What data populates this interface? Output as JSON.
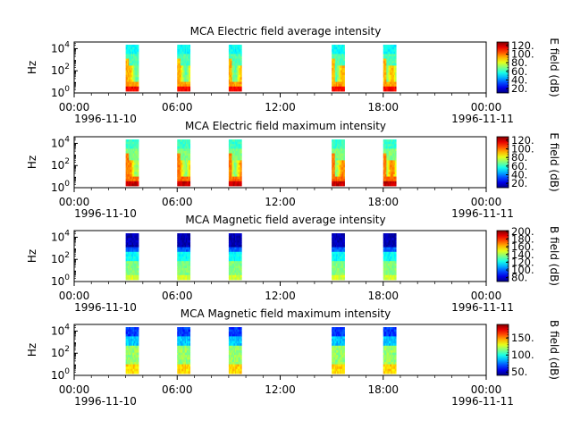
{
  "chart_data": [
    {
      "type": "heatmap",
      "title": "MCA  Electric field average intensity",
      "ylabel": "Hz",
      "colorbar_label": "E field (dB)",
      "colorbar_ticks": [
        "20.",
        "40.",
        "60.",
        "80.",
        "100.",
        "120."
      ],
      "colorbar_range": [
        10,
        128
      ],
      "y_ticks": [
        "10^0",
        "10^2",
        "10^4"
      ],
      "x_ticks": [
        "00:00",
        "06:00",
        "12:00",
        "18:00",
        "00:00"
      ],
      "x_dates": [
        "1996-11-10",
        "1996-11-11"
      ],
      "x_range_hours": [
        0,
        24
      ],
      "data_blocks_hours": [
        [
          3.0,
          3.75
        ],
        [
          6.0,
          6.75
        ],
        [
          9.0,
          9.75
        ],
        [
          15.0,
          15.75
        ],
        [
          18.0,
          18.75
        ]
      ],
      "palette": "rainbow",
      "profile": "efield-avg"
    },
    {
      "type": "heatmap",
      "title": "MCA  Electric field maximum intensity",
      "ylabel": "Hz",
      "colorbar_label": "E field (dB)",
      "colorbar_ticks": [
        "20.",
        "40.",
        "60.",
        "80.",
        "100.",
        "120."
      ],
      "colorbar_range": [
        10,
        128
      ],
      "y_ticks": [
        "10^0",
        "10^2",
        "10^4"
      ],
      "x_ticks": [
        "00:00",
        "06:00",
        "12:00",
        "18:00",
        "00:00"
      ],
      "x_dates": [
        "1996-11-10",
        "1996-11-11"
      ],
      "x_range_hours": [
        0,
        24
      ],
      "data_blocks_hours": [
        [
          3.0,
          3.75
        ],
        [
          6.0,
          6.75
        ],
        [
          9.0,
          9.75
        ],
        [
          15.0,
          15.75
        ],
        [
          18.0,
          18.75
        ]
      ],
      "palette": "rainbow",
      "profile": "efield-max"
    },
    {
      "type": "heatmap",
      "title": "MCA  Magnetic field average intensity",
      "ylabel": "Hz",
      "colorbar_label": "B field (dB)",
      "colorbar_ticks": [
        "80.",
        "100.",
        "120.",
        "140.",
        "160.",
        "180.",
        "200."
      ],
      "colorbar_range": [
        70,
        202
      ],
      "y_ticks": [
        "10^0",
        "10^2",
        "10^4"
      ],
      "x_ticks": [
        "00:00",
        "06:00",
        "12:00",
        "18:00",
        "00:00"
      ],
      "x_dates": [
        "1996-11-10",
        "1996-11-11"
      ],
      "x_range_hours": [
        0,
        24
      ],
      "data_blocks_hours": [
        [
          3.0,
          3.75
        ],
        [
          6.0,
          6.75
        ],
        [
          9.0,
          9.75
        ],
        [
          15.0,
          15.75
        ],
        [
          18.0,
          18.75
        ]
      ],
      "palette": "rainbow",
      "profile": "bfield-avg"
    },
    {
      "type": "heatmap",
      "title": "MCA  Magnetic field maximum intensity",
      "ylabel": "Hz",
      "colorbar_label": "B field (dB)",
      "colorbar_ticks": [
        "50.",
        "100.",
        "150."
      ],
      "colorbar_range": [
        40,
        190
      ],
      "y_ticks": [
        "10^0",
        "10^2",
        "10^4"
      ],
      "x_ticks": [
        "00:00",
        "06:00",
        "12:00",
        "18:00",
        "00:00"
      ],
      "x_dates": [
        "1996-11-10",
        "1996-11-11"
      ],
      "x_range_hours": [
        0,
        24
      ],
      "data_blocks_hours": [
        [
          3.0,
          3.75
        ],
        [
          6.0,
          6.75
        ],
        [
          9.0,
          9.75
        ],
        [
          15.0,
          15.75
        ],
        [
          18.0,
          18.75
        ]
      ],
      "palette": "rainbow",
      "profile": "bfield-max"
    }
  ]
}
